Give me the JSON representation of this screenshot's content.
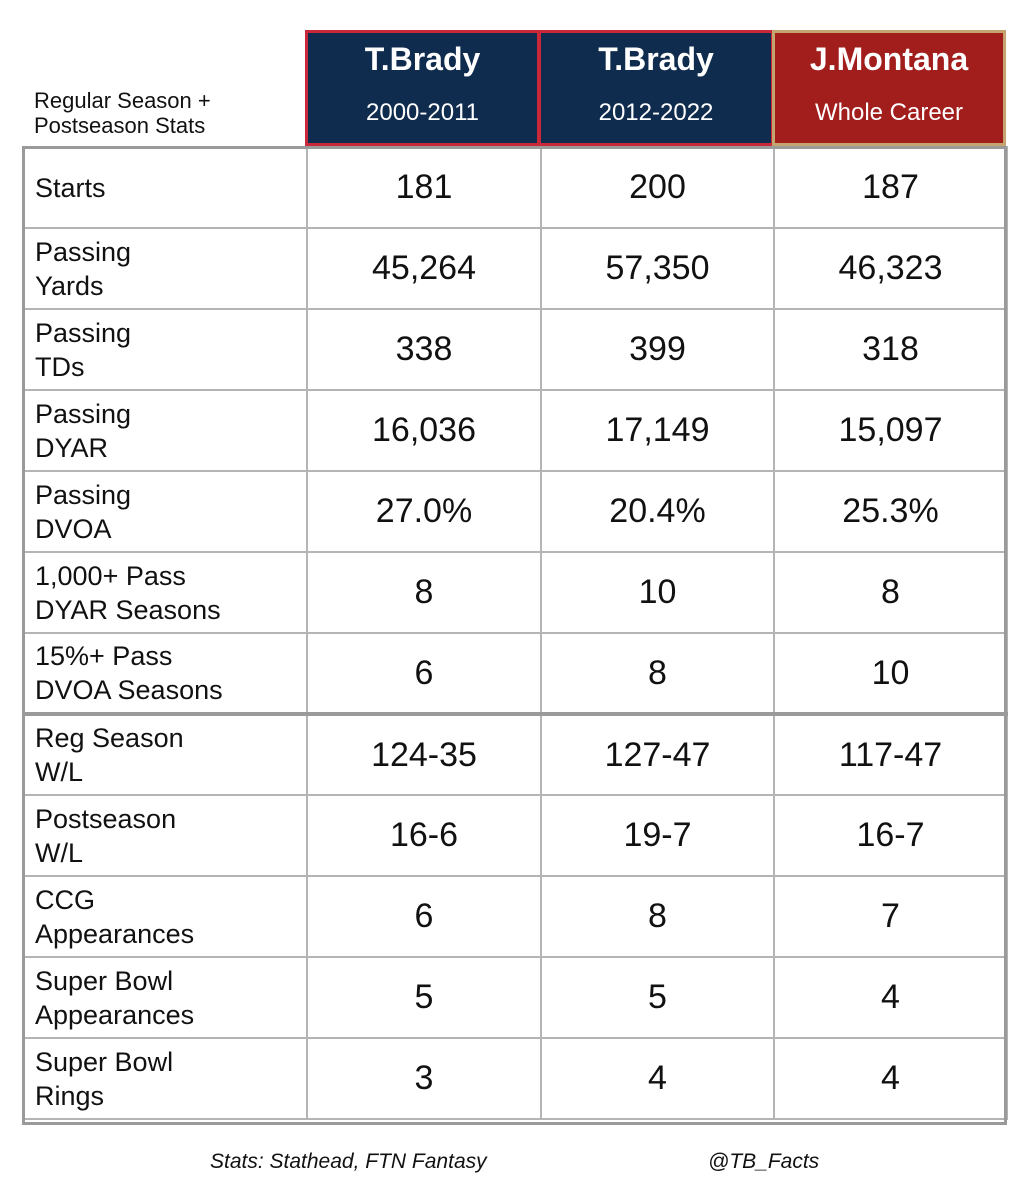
{
  "header": {
    "caption_line1": "Regular Season +",
    "caption_line2": "Postseason Stats",
    "columns": [
      {
        "name": "T.Brady",
        "years": "2000-2011"
      },
      {
        "name": "T.Brady",
        "years": "2012-2022"
      },
      {
        "name": "J.Montana",
        "years": "Whole Career"
      }
    ]
  },
  "colors": {
    "brady_bg": "#0f2b4d",
    "brady_border": "#c8283a",
    "montana_bg": "#a11e1c",
    "montana_border": "#c4a56f"
  },
  "rows": [
    {
      "label1": "Starts",
      "label2": "",
      "values": [
        "181",
        "200",
        "187"
      ]
    },
    {
      "label1": "Passing",
      "label2": "Yards",
      "values": [
        "45,264",
        "57,350",
        "46,323"
      ]
    },
    {
      "label1": "Passing",
      "label2": "TDs",
      "values": [
        "338",
        "399",
        "318"
      ]
    },
    {
      "label1": "Passing",
      "label2": "DYAR",
      "values": [
        "16,036",
        "17,149",
        "15,097"
      ]
    },
    {
      "label1": "Passing",
      "label2": "DVOA",
      "values": [
        "27.0%",
        "20.4%",
        "25.3%"
      ]
    },
    {
      "label1": "1,000+ Pass",
      "label2": "DYAR Seasons",
      "values": [
        "8",
        "10",
        "8"
      ]
    },
    {
      "label1": "15%+ Pass",
      "label2": "DVOA Seasons",
      "values": [
        "6",
        "8",
        "10"
      ]
    },
    {
      "label1": "Reg Season",
      "label2": "W/L",
      "values": [
        "124-35",
        "127-47",
        "117-47"
      ]
    },
    {
      "label1": "Postseason",
      "label2": "W/L",
      "values": [
        "16-6",
        "19-7",
        "16-7"
      ]
    },
    {
      "label1": "CCG",
      "label2": "Appearances",
      "values": [
        "6",
        "8",
        "7"
      ]
    },
    {
      "label1": "Super Bowl",
      "label2": "Appearances",
      "values": [
        "5",
        "5",
        "4"
      ]
    },
    {
      "label1": "Super Bowl",
      "label2": "Rings",
      "values": [
        "3",
        "4",
        "4"
      ]
    }
  ],
  "footer": {
    "source": "Stats: Stathead, FTN Fantasy",
    "handle": "@TB_Facts"
  }
}
